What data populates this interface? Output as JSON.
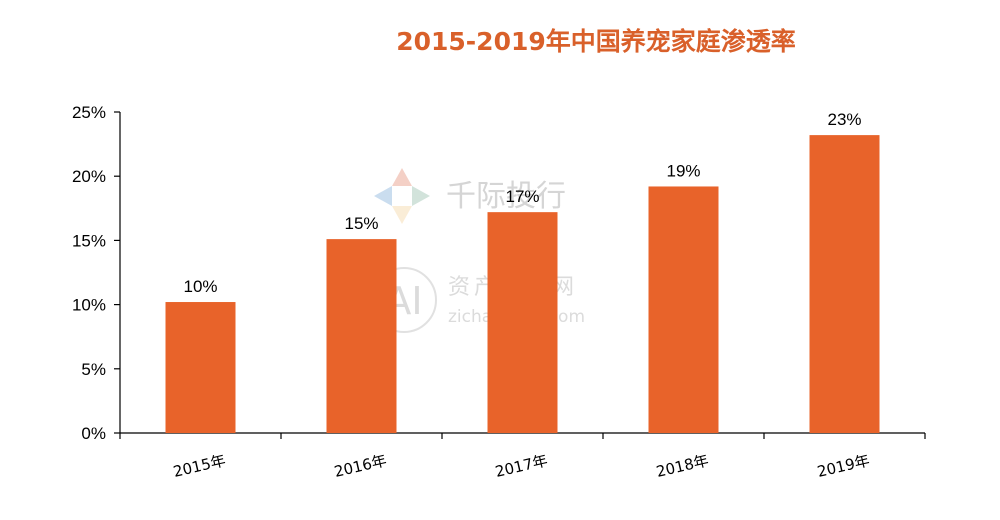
{
  "chart_data": {
    "type": "bar",
    "title": "2015-2019年中国养宠家庭渗透率",
    "categories": [
      "2015年",
      "2016年",
      "2017年",
      "2018年",
      "2019年"
    ],
    "values": [
      10.2,
      15.1,
      17.2,
      19.2,
      23.2
    ],
    "data_labels": [
      "10%",
      "15%",
      "17%",
      "19%",
      "23%"
    ],
    "y_ticks": [
      0,
      5,
      10,
      15,
      20,
      25
    ],
    "y_tick_labels": [
      "0%",
      "5%",
      "10%",
      "15%",
      "20%",
      "25%"
    ],
    "ylim": [
      0,
      25
    ],
    "xlabel": "",
    "ylabel": "",
    "grid": false,
    "legend": "none",
    "bar_color": "#E8632A",
    "title_color": "#D9602A"
  },
  "watermark": {
    "brand": "千际投行",
    "logo_text": "AI",
    "subtitle": "资产信息网",
    "url": "zichanxinxi.com"
  }
}
